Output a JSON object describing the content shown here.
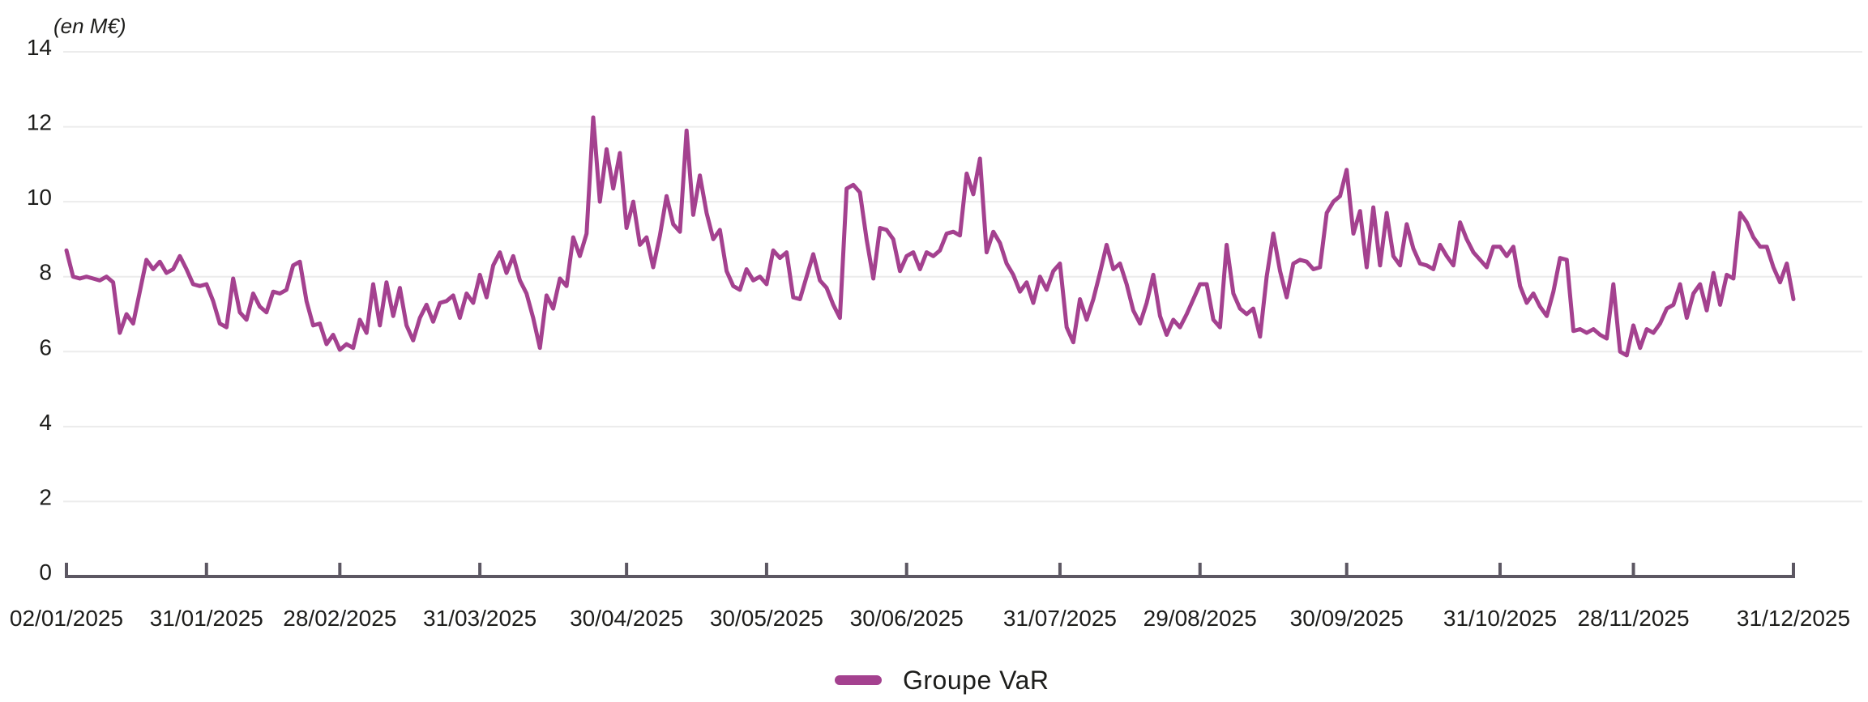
{
  "colors": {
    "background": "#FFFFFF",
    "grid": "#ECECEC",
    "axis": "#5C5762",
    "text": "#1D1D1B",
    "accent": "#A4418F"
  },
  "chart_data": {
    "type": "line",
    "title": "",
    "unit_label": "(en M€)",
    "xlabel": "",
    "ylabel": "",
    "ylim": [
      0,
      14
    ],
    "y_ticks": [
      0,
      2,
      4,
      6,
      8,
      10,
      12,
      14
    ],
    "grid": true,
    "legend_position": "bottom-center",
    "x_tick_labels": [
      "02/01/2025",
      "31/01/2025",
      "28/02/2025",
      "31/03/2025",
      "30/04/2025",
      "30/05/2025",
      "30/06/2025",
      "31/07/2025",
      "29/08/2025",
      "30/09/2025",
      "31/10/2025",
      "28/11/2025",
      "31/12/2025"
    ],
    "x_tick_indices": [
      0,
      21,
      41,
      62,
      84,
      105,
      126,
      149,
      170,
      192,
      215,
      235,
      259
    ],
    "series": [
      {
        "name": "Groupe VaR",
        "color": "#A4418F",
        "values": [
          8.7,
          8.0,
          7.95,
          8.0,
          7.95,
          7.9,
          8.0,
          7.85,
          6.5,
          7.0,
          6.75,
          7.6,
          8.45,
          8.2,
          8.4,
          8.1,
          8.2,
          8.55,
          8.2,
          7.8,
          7.75,
          7.8,
          7.35,
          6.75,
          6.65,
          7.95,
          7.05,
          6.85,
          7.55,
          7.2,
          7.05,
          7.6,
          7.55,
          7.65,
          8.3,
          8.4,
          7.35,
          6.7,
          6.75,
          6.2,
          6.45,
          6.05,
          6.2,
          6.1,
          6.85,
          6.5,
          7.8,
          6.7,
          7.85,
          6.95,
          7.7,
          6.7,
          6.3,
          6.9,
          7.25,
          6.8,
          7.3,
          7.35,
          7.5,
          6.9,
          7.55,
          7.3,
          8.05,
          7.45,
          8.3,
          8.65,
          8.1,
          8.55,
          7.9,
          7.55,
          6.9,
          6.1,
          7.5,
          7.15,
          7.95,
          7.75,
          9.05,
          8.55,
          9.15,
          12.25,
          10.0,
          11.4,
          10.35,
          11.3,
          9.3,
          10.0,
          8.85,
          9.05,
          8.25,
          9.1,
          10.15,
          9.4,
          9.2,
          11.9,
          9.65,
          10.7,
          9.7,
          9.0,
          9.25,
          8.15,
          7.75,
          7.65,
          8.2,
          7.9,
          8.0,
          7.8,
          8.7,
          8.5,
          8.65,
          7.45,
          7.4,
          8.0,
          8.6,
          7.9,
          7.7,
          7.25,
          6.9,
          10.35,
          10.45,
          10.25,
          9.0,
          7.95,
          9.3,
          9.25,
          9.0,
          8.15,
          8.55,
          8.65,
          8.2,
          8.65,
          8.55,
          8.7,
          9.15,
          9.2,
          9.1,
          10.75,
          10.2,
          11.15,
          8.65,
          9.2,
          8.9,
          8.35,
          8.05,
          7.6,
          7.85,
          7.3,
          8.0,
          7.65,
          8.15,
          8.35,
          6.65,
          6.25,
          7.4,
          6.85,
          7.4,
          8.1,
          8.85,
          8.2,
          8.35,
          7.8,
          7.1,
          6.75,
          7.3,
          8.05,
          6.95,
          6.45,
          6.85,
          6.65,
          7.0,
          7.4,
          7.8,
          7.8,
          6.85,
          6.65,
          8.85,
          7.55,
          7.15,
          7.0,
          7.15,
          6.4,
          8.0,
          9.15,
          8.15,
          7.45,
          8.35,
          8.45,
          8.4,
          8.2,
          8.25,
          9.7,
          10.0,
          10.15,
          10.85,
          9.15,
          9.75,
          8.25,
          9.85,
          8.3,
          9.7,
          8.55,
          8.3,
          9.4,
          8.75,
          8.35,
          8.3,
          8.2,
          8.85,
          8.55,
          8.3,
          9.45,
          9.0,
          8.65,
          8.45,
          8.25,
          8.8,
          8.8,
          8.55,
          8.8,
          7.75,
          7.3,
          7.55,
          7.2,
          6.95,
          7.6,
          8.5,
          8.45,
          6.55,
          6.6,
          6.5,
          6.6,
          6.45,
          6.35,
          7.8,
          6.0,
          5.9,
          6.7,
          6.1,
          6.6,
          6.5,
          6.75,
          7.15,
          7.25,
          7.8,
          6.9,
          7.55,
          7.8,
          7.1,
          8.1,
          7.25,
          8.05,
          7.95,
          9.7,
          9.45,
          9.05,
          8.8,
          8.8,
          8.25,
          7.85,
          8.35,
          7.4
        ]
      }
    ]
  }
}
